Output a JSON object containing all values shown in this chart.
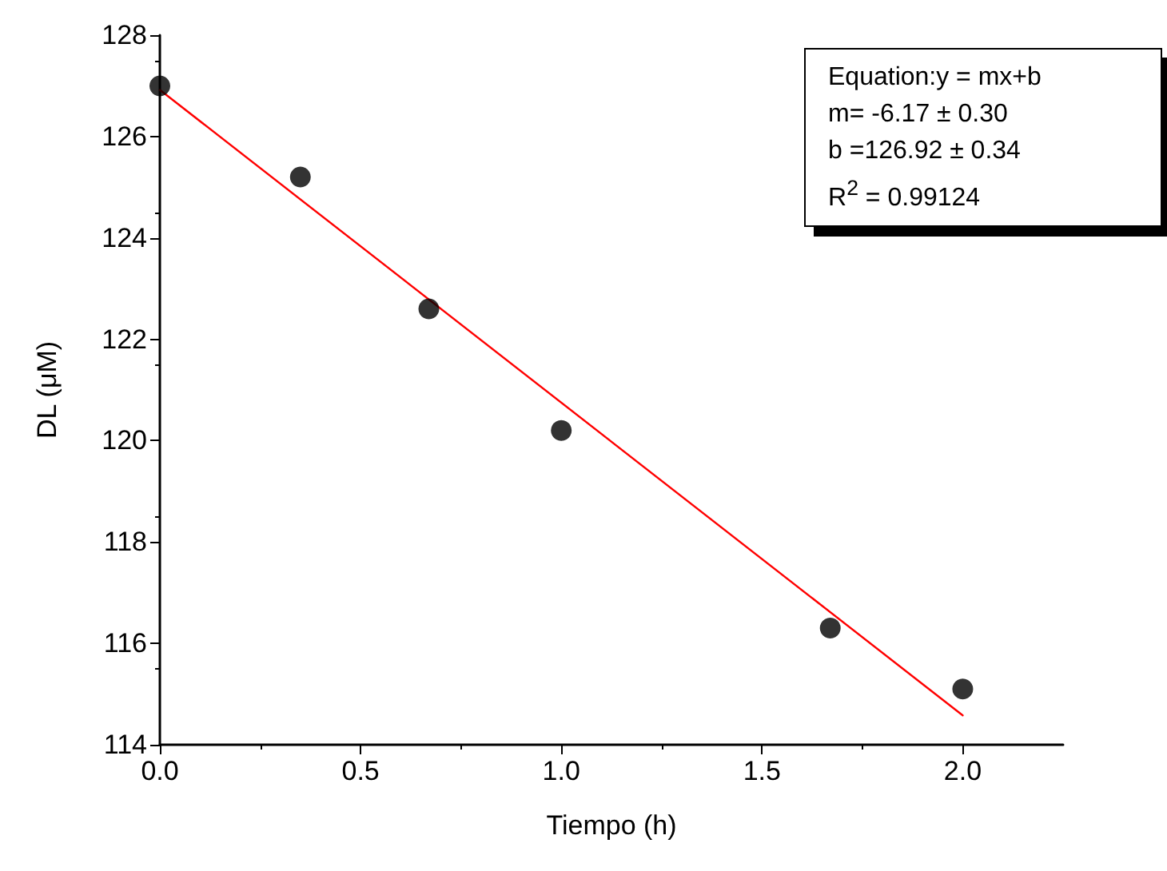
{
  "chart_data": {
    "type": "scatter",
    "xlabel": "Tiempo (h)",
    "ylabel": "DL (μM)",
    "annotations": [
      "Equation:y = mx+b",
      "m= -6.17 ± 0.30",
      "b =126.92 ± 0.34",
      "R$^{2}$ =  0.99124"
    ],
    "series": [
      {
        "color": "#000000",
        "marker": "circle",
        "x": [
          0,
          0.35,
          0.67,
          1.0,
          1.67,
          2.0
        ],
        "values": [
          127.0,
          125.2,
          122.6,
          120.2,
          116.3,
          115.1
        ]
      },
      {
        "type": "line",
        "color": "#ff0000",
        "marker": "none",
        "line_style": "solid",
        "x": [
          0,
          2.0
        ],
        "values": [
          126.92,
          114.58
        ]
      }
    ],
    "xlim": [
      0,
      2.25
    ],
    "xticks": [
      {
        "value": 0,
        "label": "0.0"
      },
      {
        "value": 0.5,
        "label": "0.5"
      },
      {
        "value": 1,
        "label": "1.0"
      },
      {
        "value": 1.5,
        "label": "1.5"
      },
      {
        "value": 2,
        "label": "2.0"
      }
    ],
    "ylim": [
      114,
      128
    ],
    "yticks": [
      114,
      116,
      118,
      120,
      122,
      124,
      126,
      128
    ],
    "grid": false
  }
}
